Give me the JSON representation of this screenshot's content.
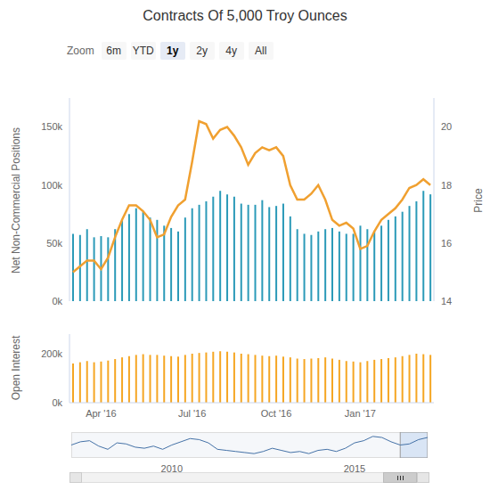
{
  "range_selector": {
    "label": "Zoom",
    "buttons": [
      "6m",
      "YTD",
      "1y",
      "2y",
      "4y",
      "All"
    ],
    "selected": "1y"
  },
  "chart_data": [
    {
      "type": "bar",
      "title": "Contracts Of 5,000 Troy Ounces",
      "ylabel": "Net Non-Commercial Positions",
      "y2label": "Price",
      "categories": [
        null,
        null,
        null,
        null,
        "Apr '16",
        null,
        null,
        null,
        null,
        null,
        null,
        null,
        null,
        null,
        null,
        null,
        null,
        "Jul '16",
        null,
        null,
        null,
        null,
        null,
        null,
        null,
        null,
        null,
        null,
        null,
        "Oct '16",
        null,
        null,
        null,
        null,
        null,
        null,
        null,
        null,
        null,
        null,
        null,
        "Jan '17",
        null,
        null,
        null,
        null,
        null,
        null,
        null,
        null,
        null,
        null
      ],
      "series": [
        {
          "type": "bar",
          "color": "#2b9ab8",
          "values": [
            58000,
            57000,
            62000,
            55000,
            56000,
            55000,
            62000,
            70000,
            75000,
            80000,
            77000,
            72000,
            70000,
            65000,
            63000,
            60000,
            72000,
            80000,
            83000,
            86000,
            90000,
            95000,
            92000,
            90000,
            84000,
            83000,
            83000,
            87000,
            81000,
            82000,
            84000,
            73000,
            62000,
            58000,
            57000,
            60000,
            62000,
            63000,
            60000,
            58000,
            58000,
            65000,
            62000,
            60000,
            65000,
            70000,
            73000,
            77000,
            82000,
            86000,
            95000,
            92000
          ]
        },
        {
          "type": "line",
          "axis": "y2",
          "color": "#f0a030",
          "values": [
            15.0,
            15.2,
            15.4,
            15.4,
            15.1,
            15.5,
            16.2,
            16.8,
            17.3,
            17.3,
            17.1,
            16.8,
            16.2,
            16.3,
            16.9,
            17.3,
            17.5,
            18.8,
            20.2,
            20.1,
            19.6,
            19.9,
            20.0,
            19.7,
            19.3,
            18.7,
            19.1,
            19.3,
            19.2,
            19.3,
            19.0,
            18.0,
            17.5,
            17.5,
            17.7,
            18.0,
            17.5,
            16.8,
            16.6,
            16.7,
            16.5,
            15.8,
            15.9,
            16.4,
            16.8,
            17.0,
            17.2,
            17.5,
            17.9,
            18.0,
            18.2,
            18.0
          ]
        }
      ],
      "ylim": [
        0,
        175000
      ],
      "yticks": [
        {
          "value": 0,
          "label": "0k"
        },
        {
          "value": 50000,
          "label": "50k"
        },
        {
          "value": 100000,
          "label": "100k"
        },
        {
          "value": 150000,
          "label": "150k"
        }
      ],
      "y2lim": [
        14,
        21
      ],
      "y2ticks": [
        14,
        16,
        18,
        20
      ],
      "grid": false,
      "tick_labels": "y"
    },
    {
      "type": "bar",
      "ylabel": "Open Interest",
      "categories": [
        null,
        null,
        null,
        null,
        "Apr '16",
        null,
        null,
        null,
        null,
        null,
        null,
        null,
        null,
        null,
        null,
        null,
        null,
        "Jul '16",
        null,
        null,
        null,
        null,
        null,
        null,
        null,
        null,
        null,
        null,
        null,
        "Oct '16",
        null,
        null,
        null,
        null,
        null,
        null,
        null,
        null,
        null,
        null,
        null,
        "Jan '17",
        null,
        null,
        null,
        null,
        null,
        null,
        null,
        null,
        null,
        null
      ],
      "values": [
        160000,
        165000,
        170000,
        165000,
        168000,
        172000,
        178000,
        185000,
        190000,
        195000,
        198000,
        195000,
        195000,
        192000,
        190000,
        188000,
        195000,
        200000,
        203000,
        205000,
        208000,
        210000,
        208000,
        205000,
        200000,
        198000,
        195000,
        192000,
        190000,
        192000,
        188000,
        185000,
        180000,
        178000,
        180000,
        182000,
        185000,
        180000,
        175000,
        170000,
        168000,
        165000,
        170000,
        175000,
        178000,
        182000,
        185000,
        190000,
        195000,
        200000,
        198000,
        195000
      ],
      "color": "#f5a623",
      "ylim": [
        0,
        280000
      ],
      "yticks": [
        {
          "value": 0,
          "label": "0k"
        },
        {
          "value": 200000,
          "label": "200k"
        }
      ],
      "grid": false
    },
    {
      "type": "line",
      "categories": [
        null,
        null,
        null,
        null,
        null,
        null,
        null,
        null,
        null,
        null,
        null,
        "2010",
        null,
        null,
        null,
        null,
        null,
        null,
        null,
        null,
        null,
        null,
        null,
        null,
        null,
        null,
        null,
        null,
        null,
        null,
        null,
        "2015",
        null,
        null,
        null,
        null,
        null,
        null,
        null,
        null
      ],
      "values": [
        60000,
        75000,
        80000,
        55000,
        40000,
        70000,
        65000,
        50000,
        45000,
        55000,
        40000,
        60000,
        75000,
        90000,
        85000,
        70000,
        40000,
        35000,
        30000,
        25000,
        20000,
        30000,
        45000,
        35000,
        25000,
        30000,
        20000,
        35000,
        40000,
        30000,
        45000,
        70000,
        80000,
        100000,
        95000,
        75000,
        60000,
        65000,
        85000,
        95000
      ],
      "color": "#4572a7",
      "ylim": [
        0,
        120000
      ],
      "tick_labels": "x"
    }
  ]
}
